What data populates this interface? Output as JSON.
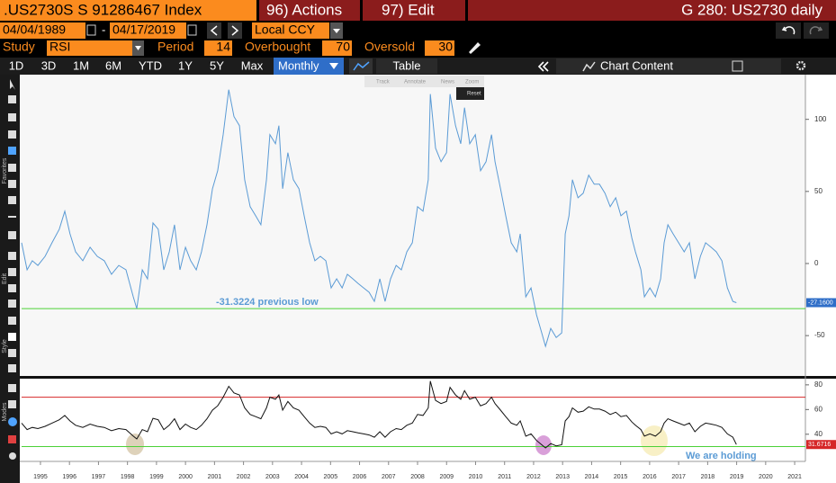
{
  "header": {
    "security": ".US2730S S 91286467 Index",
    "actions": "96) Actions",
    "edit": "97) Edit",
    "title": "G 280: US2730 daily"
  },
  "controls": {
    "start_date": "04/04/1989",
    "dash": "-",
    "end_date": "04/17/2019",
    "currency": "Local CCY",
    "study_label": "Study",
    "study": "RSI",
    "period_label": "Period",
    "period": 14,
    "overbought_label": "Overbought",
    "overbought": 70,
    "oversold_label": "Oversold",
    "oversold": 30
  },
  "toolbar": {
    "ranges": [
      "1D",
      "3D",
      "1M",
      "6M",
      "YTD",
      "1Y",
      "5Y",
      "Max"
    ],
    "frequency": "Monthly",
    "table": "Table",
    "chart_content": "Chart Content"
  },
  "overlay": {
    "track": "Track",
    "annotate": "Annotate",
    "news": "News",
    "zoom": "Zoom",
    "reset": "Reset"
  },
  "sidebar": {
    "favorites": "Favorites",
    "edit": "Edit",
    "style": "Style",
    "modes": "Modes"
  },
  "chart_data": [
    {
      "type": "line",
      "color": "#5b9bd5",
      "x": [
        1994.85,
        1995.04,
        1995.22,
        1995.41,
        1995.66,
        1995.9,
        1996.15,
        1996.34,
        1996.52,
        1996.71,
        1996.96,
        1997.21,
        1997.46,
        1997.7,
        1997.95,
        1998.2,
        1998.45,
        1998.7,
        1998.82,
        1999.01,
        1999.19,
        1999.38,
        1999.56,
        1999.75,
        1999.94,
        2000.12,
        2000.31,
        2000.5,
        2000.68,
        2000.87,
        2001.05,
        2001.24,
        2001.43,
        2001.61,
        2001.8,
        2001.99,
        2002.17,
        2002.36,
        2002.54,
        2002.73,
        2002.92,
        2003.1,
        2003.29,
        2003.41,
        2003.6,
        2003.72,
        2003.85,
        2004.03,
        2004.22,
        2004.41,
        2004.59,
        2004.78,
        2004.96,
        2005.15,
        2005.34,
        2005.52,
        2005.71,
        2005.9,
        2006.08,
        2006.27,
        2006.45,
        2006.64,
        2006.83,
        2007.01,
        2007.2,
        2007.38,
        2007.57,
        2007.76,
        2007.94,
        2008.13,
        2008.32,
        2008.5,
        2008.69,
        2008.87,
        2008.94,
        2009.12,
        2009.31,
        2009.5,
        2009.62,
        2009.81,
        2009.99,
        2010.12,
        2010.3,
        2010.49,
        2010.67,
        2010.86,
        2011.05,
        2011.17,
        2011.36,
        2011.54,
        2011.73,
        2011.92,
        2012.04,
        2012.23,
        2012.41,
        2012.6,
        2012.78,
        2012.91,
        2013.09,
        2013.28,
        2013.47,
        2013.59,
        2013.72,
        2013.84,
        2014.03,
        2014.21,
        2014.4,
        2014.59,
        2014.77,
        2014.96,
        2015.14,
        2015.33,
        2015.51,
        2015.7,
        2015.89,
        2016.01,
        2016.2,
        2016.32,
        2016.51,
        2016.7,
        2016.88,
        2017.0,
        2017.13,
        2017.31,
        2017.5,
        2017.69,
        2017.87,
        2018.06,
        2018.25,
        2018.43,
        2018.62,
        2018.8,
        2018.99,
        2019.18,
        2019.37,
        2019.49
      ],
      "values": [
        14.4,
        -4.4,
        1.9,
        -1.3,
        5,
        14.4,
        23.8,
        36.3,
        20.6,
        8.1,
        1.9,
        11.3,
        5,
        1.9,
        -7.5,
        -1.3,
        -4.4,
        -23.1,
        -31.3,
        -4.4,
        -10.6,
        28.1,
        23.8,
        -4.4,
        8.1,
        26.9,
        -4.4,
        11.3,
        1.9,
        -4.4,
        8.1,
        26.9,
        51.9,
        64.4,
        89.4,
        120.6,
        101.9,
        95.6,
        58.1,
        39.4,
        33.1,
        26.9,
        58.1,
        89.4,
        83.1,
        95.6,
        51.9,
        76.9,
        58.1,
        51.9,
        33.1,
        14.4,
        1.9,
        5,
        1.9,
        -16.9,
        -10.6,
        -16.9,
        -7.5,
        -10.6,
        -13.8,
        -16.9,
        -20,
        -26.3,
        -10.6,
        -26.3,
        -10.6,
        -1.3,
        -4.4,
        8.1,
        14.4,
        39.4,
        36.3,
        58.1,
        117.5,
        80,
        70.6,
        76.9,
        117.5,
        95.6,
        83.1,
        108.1,
        83.1,
        89.4,
        64.4,
        70.6,
        89.4,
        70.6,
        51.9,
        33.1,
        14.4,
        8.1,
        20.6,
        -23.1,
        -16.9,
        -35.6,
        -48.1,
        -57.5,
        -45,
        -51.3,
        -48.1,
        20.6,
        33.1,
        58.1,
        45.6,
        48.8,
        61.3,
        55,
        55,
        48.8,
        39.4,
        45.6,
        33.1,
        36.3,
        17.5,
        8.1,
        -4.4,
        -23.1,
        -16.9,
        -23.1,
        -10.6,
        14.4,
        26.9,
        20.6,
        14.4,
        8.1,
        14.4,
        -10.6,
        5,
        14.4,
        11.3,
        8.1,
        1.9,
        -16.9,
        -26.3,
        -27.16
      ],
      "xlim": [
        1994.85,
        2021.87
      ],
      "ylim": [
        -78,
        131
      ],
      "yticks": [
        100,
        50,
        0,
        -50
      ],
      "reference_line": {
        "value": -31.3224,
        "label": "-31.3224 previous low",
        "color": "#4cd137"
      },
      "last_label": {
        "value": -27.16,
        "label": "-27.1600"
      }
    },
    {
      "type": "line",
      "color": "#111111",
      "x": [
        1994.85,
        1995.04,
        1995.22,
        1995.41,
        1995.66,
        1995.9,
        1996.15,
        1996.34,
        1996.52,
        1996.71,
        1996.96,
        1997.21,
        1997.46,
        1997.7,
        1997.95,
        1998.2,
        1998.45,
        1998.7,
        1998.82,
        1999.01,
        1999.19,
        1999.38,
        1999.56,
        1999.75,
        1999.94,
        2000.12,
        2000.31,
        2000.5,
        2000.68,
        2000.87,
        2001.05,
        2001.24,
        2001.43,
        2001.61,
        2001.8,
        2001.99,
        2002.17,
        2002.36,
        2002.54,
        2002.73,
        2002.92,
        2003.1,
        2003.29,
        2003.41,
        2003.6,
        2003.72,
        2003.85,
        2004.03,
        2004.22,
        2004.41,
        2004.59,
        2004.78,
        2004.96,
        2005.15,
        2005.34,
        2005.52,
        2005.71,
        2005.9,
        2006.08,
        2006.27,
        2006.45,
        2006.64,
        2006.83,
        2007.01,
        2007.2,
        2007.38,
        2007.57,
        2007.76,
        2007.94,
        2008.13,
        2008.32,
        2008.5,
        2008.69,
        2008.87,
        2008.94,
        2009.12,
        2009.31,
        2009.5,
        2009.62,
        2009.81,
        2009.99,
        2010.12,
        2010.3,
        2010.49,
        2010.67,
        2010.86,
        2011.05,
        2011.17,
        2011.36,
        2011.54,
        2011.73,
        2011.92,
        2012.04,
        2012.23,
        2012.41,
        2012.6,
        2012.78,
        2012.91,
        2013.09,
        2013.28,
        2013.47,
        2013.59,
        2013.72,
        2013.84,
        2014.03,
        2014.21,
        2014.4,
        2014.59,
        2014.77,
        2014.96,
        2015.14,
        2015.33,
        2015.51,
        2015.7,
        2015.89,
        2016.01,
        2016.2,
        2016.32,
        2016.51,
        2016.7,
        2016.88,
        2017.0,
        2017.13,
        2017.31,
        2017.5,
        2017.69,
        2017.87,
        2018.06,
        2018.25,
        2018.43,
        2018.62,
        2018.8,
        2018.99,
        2019.18,
        2019.37,
        2019.49
      ],
      "values": [
        49.0,
        43.8,
        45.5,
        44.6,
        46.4,
        49.0,
        51.7,
        55.2,
        50.8,
        47.3,
        45.5,
        48.2,
        46.4,
        45.5,
        42.9,
        44.6,
        43.8,
        38.5,
        36.2,
        43.8,
        42.0,
        52.9,
        51.7,
        43.8,
        47.3,
        52.5,
        43.8,
        48.2,
        45.5,
        43.8,
        47.3,
        52.5,
        59.5,
        63.0,
        70.0,
        78.8,
        73.5,
        71.8,
        61.3,
        56.0,
        54.3,
        52.5,
        61.3,
        70.0,
        68.3,
        71.8,
        59.5,
        66.5,
        61.3,
        59.5,
        54.3,
        49.0,
        45.5,
        46.4,
        45.5,
        40.3,
        42.0,
        40.3,
        42.9,
        42.0,
        41.1,
        40.3,
        39.4,
        37.6,
        42.0,
        37.6,
        42.0,
        44.6,
        43.8,
        47.3,
        49.0,
        56.0,
        55.2,
        61.3,
        83.0,
        67.4,
        64.8,
        66.5,
        77.9,
        71.8,
        68.3,
        75.3,
        68.3,
        70.0,
        63.0,
        64.8,
        70.0,
        64.8,
        59.5,
        54.3,
        49.0,
        47.3,
        50.8,
        38.5,
        40.3,
        35.0,
        31.5,
        28.9,
        32.4,
        30.6,
        31.5,
        50.8,
        54.3,
        61.3,
        57.8,
        58.7,
        62.2,
        60.4,
        60.4,
        58.7,
        56.0,
        57.8,
        54.3,
        55.2,
        49.9,
        47.3,
        43.8,
        38.5,
        40.3,
        38.5,
        42.0,
        49.0,
        52.5,
        50.8,
        49.0,
        47.3,
        49.0,
        42.0,
        46.4,
        49.0,
        48.2,
        47.3,
        45.5,
        40.3,
        37.6,
        31.6716
      ],
      "xlim": [
        1994.85,
        2021.87
      ],
      "ylim": [
        18,
        85
      ],
      "yticks": [
        80,
        60,
        40
      ],
      "xticks": [
        {
          "value": 1995.5,
          "label": "1995"
        },
        {
          "value": 1996.5,
          "label": "1996"
        },
        {
          "value": 1997.5,
          "label": "1997"
        },
        {
          "value": 1998.5,
          "label": "1998"
        },
        {
          "value": 1999.5,
          "label": "1999"
        },
        {
          "value": 2000.5,
          "label": "2000"
        },
        {
          "value": 2001.5,
          "label": "2001"
        },
        {
          "value": 2002.5,
          "label": "2002"
        },
        {
          "value": 2003.5,
          "label": "2003"
        },
        {
          "value": 2004.5,
          "label": "2004"
        },
        {
          "value": 2005.5,
          "label": "2005"
        },
        {
          "value": 2006.5,
          "label": "2006"
        },
        {
          "value": 2007.5,
          "label": "2007"
        },
        {
          "value": 2008.5,
          "label": "2008"
        },
        {
          "value": 2009.5,
          "label": "2009"
        },
        {
          "value": 2010.5,
          "label": "2010"
        },
        {
          "value": 2011.5,
          "label": "2011"
        },
        {
          "value": 2012.5,
          "label": "2012"
        },
        {
          "value": 2013.5,
          "label": "2013"
        },
        {
          "value": 2014.5,
          "label": "2014"
        },
        {
          "value": 2015.5,
          "label": "2015"
        },
        {
          "value": 2016.5,
          "label": "2016"
        },
        {
          "value": 2017.5,
          "label": "2017"
        },
        {
          "value": 2018.5,
          "label": "2018"
        },
        {
          "value": 2019.5,
          "label": "2019"
        },
        {
          "value": 2020.5,
          "label": "2020"
        },
        {
          "value": 2021.5,
          "label": "2021"
        }
      ],
      "overbought_color": "#d62728",
      "oversold_color": "#4cd137",
      "annotation": "We are holding",
      "last_label": {
        "value": 31.6716,
        "label": "31.6716"
      }
    }
  ]
}
